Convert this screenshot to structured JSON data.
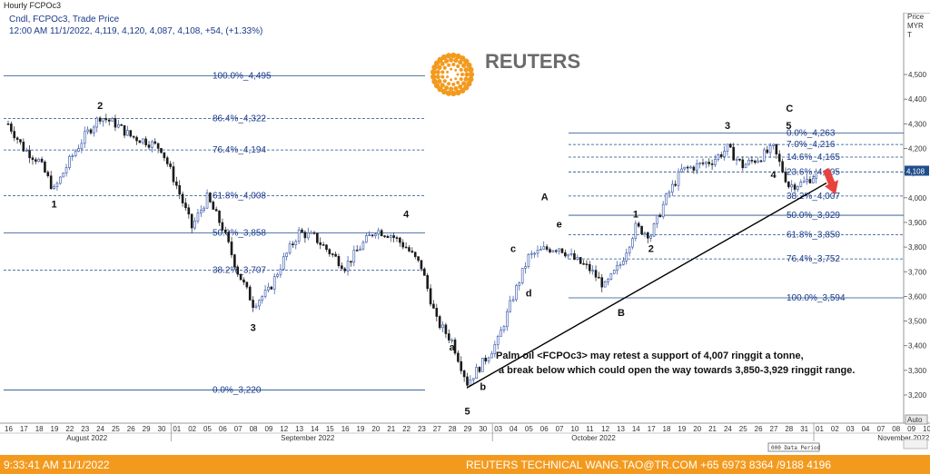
{
  "window": {
    "title": "Hourly FCPOc3"
  },
  "header": {
    "line1": "Cndl, FCPOc3, Trade Price",
    "line2": "12:00 AM 11/1/2022, 4,119, 4,120, 4,087, 4,108, +54, (+1.33%)"
  },
  "logo": {
    "text": "REUTERS",
    "color": "#f39a1e"
  },
  "axis": {
    "price_label": "Price",
    "currency_label": "MYR",
    "currency_sub": "T",
    "last_price": "4,108",
    "auto_label": "Auto",
    "data_period_label": "000 Data Period"
  },
  "footer": {
    "time": "9:33:41 AM 11/1/2022",
    "right": "REUTERS TECHNICAL   WANG.TAO@TR.COM   +65 6973 8364 /9188 4196"
  },
  "annotation": {
    "line1": "Palm oil <FCPOc3> may retest a support of 4,007 ringgit a tonne,",
    "line2": "a break below which could open the way towards 3,850-3,929 ringgit range."
  },
  "chart_data": {
    "type": "candlestick",
    "title": "Hourly FCPOc3",
    "ylabel": "Price MYR",
    "ylim": [
      3120,
      4560
    ],
    "y_ticks": [
      3200,
      3300,
      3400,
      3500,
      3600,
      3700,
      3800,
      3900,
      4000,
      4100,
      4200,
      4300,
      4400,
      4500
    ],
    "y_tick_labels": [
      "3,200",
      "3,300",
      "3,400",
      "3,500",
      "3,600",
      "3,700",
      "3,800",
      "3,900",
      "4,000",
      "4,100",
      "4,200",
      "4,300",
      "4,400",
      "4,500"
    ],
    "x_day_labels": [
      "16",
      "17",
      "18",
      "19",
      "22",
      "23",
      "24",
      "25",
      "26",
      "29",
      "30",
      "01",
      "02",
      "05",
      "06",
      "07",
      "08",
      "09",
      "12",
      "13",
      "14",
      "15",
      "16",
      "19",
      "20",
      "21",
      "22",
      "23",
      "27",
      "28",
      "29",
      "30",
      "03",
      "04",
      "05",
      "06",
      "07",
      "10",
      "11",
      "12",
      "13",
      "14",
      "17",
      "18",
      "19",
      "20",
      "21",
      "24",
      "25",
      "26",
      "27",
      "28",
      "31",
      "01",
      "02",
      "03",
      "04",
      "07",
      "08",
      "09",
      "10",
      "11",
      "14",
      "15",
      "16",
      "17"
    ],
    "x_months": [
      "August 2022",
      "September 2022",
      "October 2022",
      "November 2022"
    ],
    "price_path": [
      {
        "date": "Aug 16",
        "price": 4300
      },
      {
        "date": "Aug 17",
        "price": 4200
      },
      {
        "date": "Aug 18",
        "price": 4150
      },
      {
        "date": "Aug 19",
        "price": 4030
      },
      {
        "date": "Aug 22",
        "price": 4150
      },
      {
        "date": "Aug 23",
        "price": 4250
      },
      {
        "date": "Aug 24",
        "price": 4330
      },
      {
        "date": "Aug 25",
        "price": 4300
      },
      {
        "date": "Aug 26",
        "price": 4250
      },
      {
        "date": "Aug 29",
        "price": 4230
      },
      {
        "date": "Aug 30",
        "price": 4200
      },
      {
        "date": "Sep 01",
        "price": 4050
      },
      {
        "date": "Sep 02",
        "price": 3880
      },
      {
        "date": "Sep 05",
        "price": 4000
      },
      {
        "date": "Sep 06",
        "price": 3880
      },
      {
        "date": "Sep 07",
        "price": 3700
      },
      {
        "date": "Sep 08",
        "price": 3570
      },
      {
        "date": "Sep 09",
        "price": 3620
      },
      {
        "date": "Sep 12",
        "price": 3750
      },
      {
        "date": "Sep 13",
        "price": 3860
      },
      {
        "date": "Sep 14",
        "price": 3840
      },
      {
        "date": "Sep 15",
        "price": 3780
      },
      {
        "date": "Sep 16",
        "price": 3720
      },
      {
        "date": "Sep 19",
        "price": 3800
      },
      {
        "date": "Sep 20",
        "price": 3870
      },
      {
        "date": "Sep 21",
        "price": 3850
      },
      {
        "date": "Sep 22",
        "price": 3800
      },
      {
        "date": "Sep 23",
        "price": 3720
      },
      {
        "date": "Sep 27",
        "price": 3500
      },
      {
        "date": "Sep 28",
        "price": 3420
      },
      {
        "date": "Sep 29",
        "price": 3250
      },
      {
        "date": "Sep 30",
        "price": 3330
      },
      {
        "date": "Oct 03",
        "price": 3420
      },
      {
        "date": "Oct 04",
        "price": 3600
      },
      {
        "date": "Oct 05",
        "price": 3760
      },
      {
        "date": "Oct 06",
        "price": 3790
      },
      {
        "date": "Oct 07",
        "price": 3800
      },
      {
        "date": "Oct 10",
        "price": 3750
      },
      {
        "date": "Oct 11",
        "price": 3710
      },
      {
        "date": "Oct 12",
        "price": 3640
      },
      {
        "date": "Oct 13",
        "price": 3730
      },
      {
        "date": "Oct 14",
        "price": 3880
      },
      {
        "date": "Oct 17",
        "price": 3850
      },
      {
        "date": "Oct 18",
        "price": 4000
      },
      {
        "date": "Oct 19",
        "price": 4110
      },
      {
        "date": "Oct 20",
        "price": 4130
      },
      {
        "date": "Oct 21",
        "price": 4150
      },
      {
        "date": "Oct 24",
        "price": 4200
      },
      {
        "date": "Oct 25",
        "price": 4130
      },
      {
        "date": "Oct 26",
        "price": 4160
      },
      {
        "date": "Oct 27",
        "price": 4200
      },
      {
        "date": "Oct 28",
        "price": 4050
      },
      {
        "date": "Oct 31",
        "price": 4060
      },
      {
        "date": "Nov 01",
        "price": 4108
      }
    ],
    "fib_left": {
      "line_color": "#1f4e8c",
      "levels": [
        {
          "pct": "100.0%",
          "value": 4495,
          "label": "4,495"
        },
        {
          "pct": "86.4%",
          "value": 4322,
          "label": "4,322"
        },
        {
          "pct": "76.4%",
          "value": 4194,
          "label": "4,194"
        },
        {
          "pct": "61.8%",
          "value": 4008,
          "label": "4,008"
        },
        {
          "pct": "50.0%",
          "value": 3858,
          "label": "3,858"
        },
        {
          "pct": "38.2%",
          "value": 3707,
          "label": "3,707"
        },
        {
          "pct": "0.0%",
          "value": 3220,
          "label": "3,220"
        }
      ]
    },
    "fib_right": {
      "line_color": "#1f4e8c",
      "levels": [
        {
          "pct": "0.0%",
          "value": 4263,
          "label": "4,263"
        },
        {
          "pct": "7.0%",
          "value": 4216,
          "label": "4,216"
        },
        {
          "pct": "14.6%",
          "value": 4165,
          "label": "4,165"
        },
        {
          "pct": "23.6%",
          "value": 4105,
          "label": "4,105"
        },
        {
          "pct": "38.2%",
          "value": 4007,
          "label": "4,007"
        },
        {
          "pct": "50.0%",
          "value": 3929,
          "label": "3,929"
        },
        {
          "pct": "61.8%",
          "value": 3850,
          "label": "3,850"
        },
        {
          "pct": "76.4%",
          "value": 3752,
          "label": "3,752"
        },
        {
          "pct": "100.0%",
          "value": 3594,
          "label": "3,594"
        }
      ]
    },
    "wave_labels": [
      {
        "text": "2",
        "date": "Aug 24",
        "price": 4360
      },
      {
        "text": "1",
        "date": "Aug 19",
        "price": 3960
      },
      {
        "text": "3",
        "date": "Sep 08",
        "price": 3460
      },
      {
        "text": "4",
        "date": "Sep 22",
        "price": 3920
      },
      {
        "text": "5",
        "date": "Sep 29",
        "price": 3120
      },
      {
        "text": "a",
        "date": "Sep 28",
        "price": 3380
      },
      {
        "text": "b",
        "date": "Sep 30",
        "price": 3220
      },
      {
        "text": "c",
        "date": "Oct 04",
        "price": 3780
      },
      {
        "text": "d",
        "date": "Oct 05",
        "price": 3600
      },
      {
        "text": "e",
        "date": "Oct 07",
        "price": 3880
      },
      {
        "text": "A",
        "date": "Oct 06",
        "price": 3990
      },
      {
        "text": "B",
        "date": "Oct 13",
        "price": 3520
      },
      {
        "text": "1",
        "date": "Oct 14",
        "price": 3920
      },
      {
        "text": "2",
        "date": "Oct 17",
        "price": 3780
      },
      {
        "text": "3",
        "date": "Oct 24",
        "price": 4280
      },
      {
        "text": "4",
        "date": "Oct 27",
        "price": 4080
      },
      {
        "text": "5",
        "date": "Oct 28",
        "price": 4280
      },
      {
        "text": "C",
        "date": "Oct 28",
        "price": 4350
      }
    ],
    "trendline": {
      "from": {
        "date": "Sep 29",
        "price": 3230
      },
      "to": {
        "date": "Nov 01",
        "price": 4060
      },
      "color": "#000000"
    },
    "arrow": {
      "color": "#e8423c",
      "direction": "down"
    },
    "candle_colors": {
      "up": "#2d4fa6",
      "down": "#1a1a1a"
    }
  }
}
